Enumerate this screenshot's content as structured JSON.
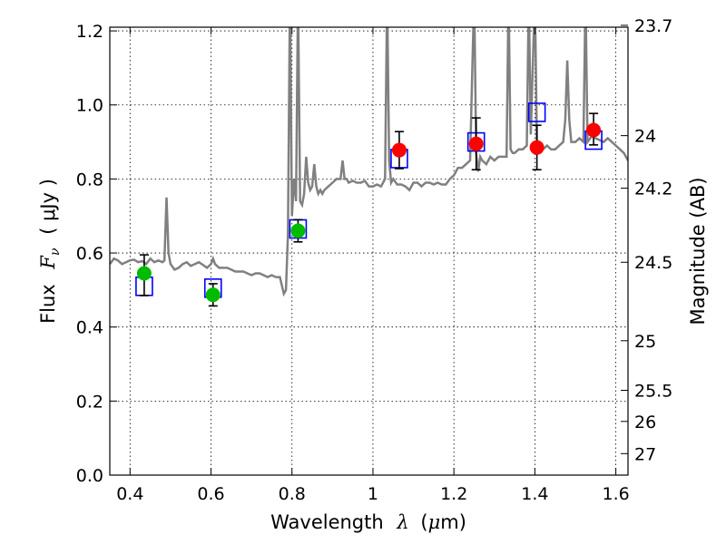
{
  "chart_data": {
    "type": "scatter",
    "title": "",
    "xlabel": "Wavelength",
    "xlabel_symbol": "λ",
    "xlabel_unit_prefix": "(",
    "xlabel_unit_mu": "μ",
    "xlabel_unit_rest": "m)",
    "ylabel_prefix": "Flux",
    "ylabel_symbol": "F",
    "ylabel_sub": "ν",
    "ylabel_unit": "( μJy )",
    "y2label": "Magnitude (AB)",
    "xlim": [
      0.35,
      1.63
    ],
    "ylim": [
      0.0,
      1.21
    ],
    "grid": true,
    "x_ticks": [
      0.4,
      0.6,
      0.8,
      1.0,
      1.2,
      1.4,
      1.6
    ],
    "x_tick_labels": [
      "0.4",
      "0.6",
      "0.8",
      "1",
      "1.2",
      "1.4",
      "1.6"
    ],
    "y_ticks": [
      0.0,
      0.2,
      0.4,
      0.6,
      0.8,
      1.0,
      1.2
    ],
    "y_tick_labels": [
      "0.0",
      "0.2",
      "0.4",
      "0.6",
      "0.8",
      "1.0",
      "1.2"
    ],
    "y2_ticks": [
      {
        "flux": 1.215,
        "label": "23.7"
      },
      {
        "flux": 0.917,
        "label": "24"
      },
      {
        "flux": 0.775,
        "label": "24.2"
      },
      {
        "flux": 0.575,
        "label": "24.5"
      },
      {
        "flux": 0.363,
        "label": "25"
      },
      {
        "flux": 0.229,
        "label": "25.5"
      },
      {
        "flux": 0.145,
        "label": "26"
      },
      {
        "flux": 0.058,
        "label": "27"
      }
    ],
    "model_spectrum": {
      "color": "#808080",
      "x": [
        0.35,
        0.36,
        0.37,
        0.38,
        0.39,
        0.4,
        0.41,
        0.42,
        0.43,
        0.44,
        0.45,
        0.46,
        0.47,
        0.48,
        0.485,
        0.49,
        0.495,
        0.5,
        0.51,
        0.52,
        0.53,
        0.54,
        0.55,
        0.56,
        0.57,
        0.58,
        0.59,
        0.6,
        0.605,
        0.61,
        0.615,
        0.62,
        0.63,
        0.64,
        0.65,
        0.66,
        0.67,
        0.68,
        0.69,
        0.7,
        0.71,
        0.72,
        0.73,
        0.74,
        0.75,
        0.76,
        0.77,
        0.78,
        0.785,
        0.79,
        0.795,
        0.8,
        0.805,
        0.81,
        0.815,
        0.82,
        0.825,
        0.83,
        0.835,
        0.84,
        0.845,
        0.85,
        0.855,
        0.86,
        0.865,
        0.87,
        0.875,
        0.88,
        0.89,
        0.9,
        0.91,
        0.92,
        0.925,
        0.93,
        0.935,
        0.94,
        0.95,
        0.96,
        0.97,
        0.98,
        0.99,
        1.0,
        1.01,
        1.02,
        1.03,
        1.035,
        1.04,
        1.045,
        1.05,
        1.06,
        1.07,
        1.08,
        1.09,
        1.1,
        1.11,
        1.12,
        1.13,
        1.14,
        1.15,
        1.16,
        1.17,
        1.18,
        1.19,
        1.2,
        1.21,
        1.22,
        1.23,
        1.24,
        1.25,
        1.255,
        1.26,
        1.265,
        1.27,
        1.28,
        1.29,
        1.3,
        1.31,
        1.32,
        1.33,
        1.335,
        1.34,
        1.345,
        1.35,
        1.36,
        1.37,
        1.38,
        1.385,
        1.39,
        1.4,
        1.405,
        1.41,
        1.42,
        1.43,
        1.44,
        1.45,
        1.46,
        1.47,
        1.475,
        1.48,
        1.485,
        1.49,
        1.5,
        1.51,
        1.52,
        1.525,
        1.53,
        1.54,
        1.55,
        1.56,
        1.57,
        1.58,
        1.59,
        1.6,
        1.61,
        1.62,
        1.63
      ],
      "y": [
        0.57,
        0.585,
        0.58,
        0.57,
        0.575,
        0.58,
        0.582,
        0.575,
        0.578,
        0.57,
        0.585,
        0.575,
        0.58,
        0.575,
        0.58,
        0.75,
        0.6,
        0.57,
        0.555,
        0.56,
        0.57,
        0.575,
        0.565,
        0.57,
        0.575,
        0.568,
        0.56,
        0.57,
        0.585,
        0.57,
        0.565,
        0.56,
        0.56,
        0.56,
        0.555,
        0.55,
        0.55,
        0.55,
        0.545,
        0.54,
        0.545,
        0.545,
        0.54,
        0.535,
        0.54,
        0.535,
        0.535,
        0.49,
        0.5,
        0.65,
        1.3,
        0.7,
        0.8,
        0.74,
        1.3,
        0.74,
        0.73,
        0.76,
        0.86,
        0.79,
        0.77,
        0.78,
        0.84,
        0.78,
        0.76,
        0.77,
        0.76,
        0.77,
        0.78,
        0.79,
        0.8,
        0.8,
        0.85,
        0.8,
        0.8,
        0.79,
        0.795,
        0.79,
        0.79,
        0.795,
        0.78,
        0.78,
        0.785,
        0.78,
        0.8,
        1.3,
        0.85,
        0.79,
        0.8,
        0.785,
        0.785,
        0.78,
        0.77,
        0.79,
        0.79,
        0.78,
        0.79,
        0.79,
        0.785,
        0.79,
        0.785,
        0.785,
        0.8,
        0.81,
        0.83,
        0.83,
        0.84,
        0.85,
        1.3,
        0.87,
        0.82,
        0.86,
        0.85,
        0.84,
        0.86,
        0.85,
        0.86,
        0.86,
        0.86,
        1.3,
        0.88,
        0.87,
        0.87,
        0.88,
        0.88,
        0.89,
        1.3,
        0.92,
        1.3,
        0.9,
        0.88,
        0.88,
        0.89,
        0.88,
        0.88,
        0.89,
        0.9,
        0.96,
        1.12,
        0.96,
        0.9,
        0.9,
        0.91,
        0.9,
        1.3,
        0.9,
        0.915,
        0.91,
        0.905,
        0.9,
        0.91,
        0.9,
        0.89,
        0.88,
        0.87,
        0.85
      ]
    },
    "series": [
      {
        "name": "",
        "marker": "circle",
        "color": "#00bb00",
        "x": [
          0.435,
          0.605,
          0.815
        ],
        "y": [
          0.545,
          0.487,
          0.66
        ],
        "yerr_low": [
          0.06,
          0.03,
          0.03
        ],
        "yerr_high": [
          0.05,
          0.03,
          0.03
        ]
      },
      {
        "name": "",
        "marker": "circle",
        "color": "#ff0000",
        "x": [
          1.065,
          1.255,
          1.405,
          1.545
        ],
        "y": [
          0.878,
          0.895,
          0.885,
          0.932
        ],
        "yerr_low": [
          0.05,
          0.07,
          0.06,
          0.04
        ],
        "yerr_high": [
          0.05,
          0.07,
          0.06,
          0.045
        ]
      },
      {
        "name": "",
        "marker": "open-square",
        "color": "#0000ff",
        "x": [
          0.435,
          0.605,
          0.815,
          1.065,
          1.255,
          1.405,
          1.545
        ],
        "y": [
          0.51,
          0.505,
          0.665,
          0.855,
          0.9,
          0.98,
          0.905
        ]
      }
    ]
  }
}
